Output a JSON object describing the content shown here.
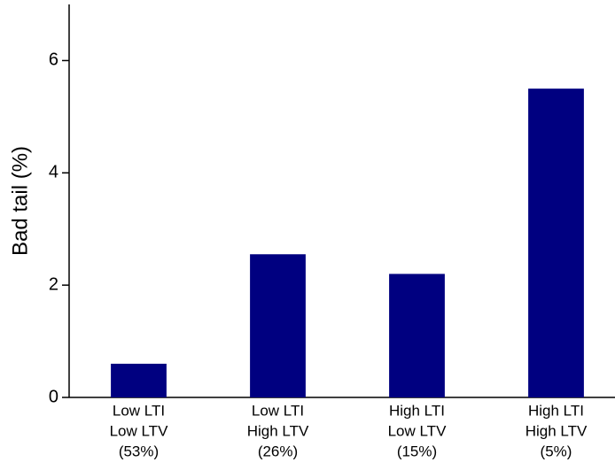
{
  "chart_data": {
    "type": "bar",
    "y_label": "Bad tail (%)",
    "categories": [
      [
        "Low LTI",
        "Low LTV",
        "(53%)"
      ],
      [
        "Low LTI",
        "High LTV",
        "(26%)"
      ],
      [
        "High LTI",
        "Low LTV",
        "(15%)"
      ],
      [
        "High LTI",
        "High LTV",
        "(5%)"
      ]
    ],
    "values": [
      0.6,
      2.55,
      2.2,
      5.5
    ],
    "color": "#000080",
    "ylim": [
      0,
      7
    ],
    "yticks": [
      0,
      2,
      4,
      6
    ],
    "grid": false
  }
}
